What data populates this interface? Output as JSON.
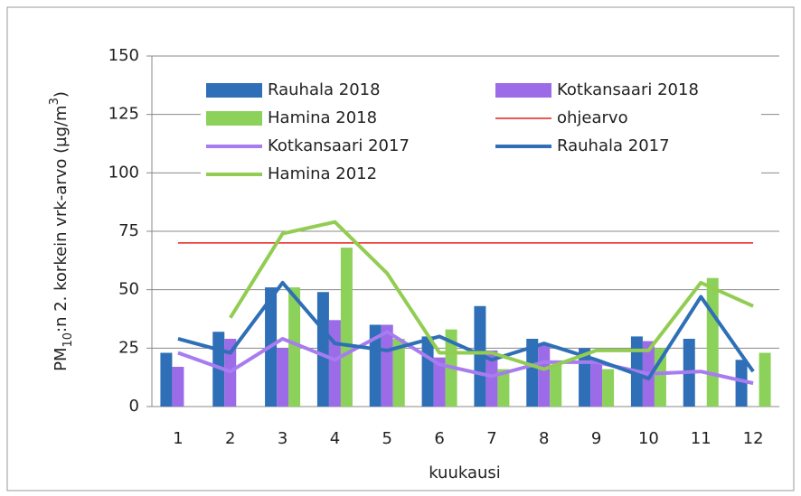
{
  "chart_data": {
    "type": "bar",
    "xlabel": "kuukausi",
    "ylabel": [
      "PM",
      "10",
      ":n 2. korkein vrk-arvo (µg/m",
      "3",
      ")"
    ],
    "ylabel_styles": [
      "normal",
      "sub",
      "normal",
      "super",
      "normal"
    ],
    "categories": [
      "1",
      "2",
      "3",
      "4",
      "5",
      "6",
      "7",
      "8",
      "9",
      "10",
      "11",
      "12"
    ],
    "ylim": [
      0,
      150
    ],
    "yticks": [
      0,
      25,
      50,
      75,
      100,
      125,
      150
    ],
    "grid": true,
    "series": [
      {
        "name": "Rauhala 2018",
        "kind": "bar",
        "color": "#2e6fb7",
        "values": [
          23,
          32,
          51,
          49,
          35,
          30,
          43,
          29,
          25,
          30,
          29,
          20
        ]
      },
      {
        "name": "Kotkansaari 2018",
        "kind": "bar",
        "color": "#9b6be8",
        "values": [
          17,
          29,
          25,
          37,
          35,
          21,
          24,
          27,
          20,
          28,
          null,
          null
        ]
      },
      {
        "name": "Hamina 2018",
        "kind": "bar",
        "color": "#8cd15a",
        "values": [
          null,
          null,
          51,
          68,
          29,
          33,
          16,
          18,
          16,
          25,
          55,
          23
        ]
      },
      {
        "name": "ohjearvo",
        "kind": "line",
        "width": 1.5,
        "color": "#e8201c",
        "values": [
          70,
          70,
          70,
          70,
          70,
          70,
          70,
          70,
          70,
          70,
          70,
          70
        ]
      },
      {
        "name": "Kotkansaari 2017",
        "kind": "line",
        "width": 4,
        "color": "#a77cf0",
        "values": [
          23,
          15,
          29,
          20,
          32,
          18,
          13,
          19,
          19,
          14,
          15,
          10
        ]
      },
      {
        "name": "Rauhala 2017",
        "kind": "line",
        "width": 4,
        "color": "#2e6fb7",
        "values": [
          29,
          23,
          53,
          27,
          24,
          30,
          20,
          27,
          20,
          12,
          47,
          15
        ]
      },
      {
        "name": "Hamina 2012",
        "kind": "line",
        "width": 4,
        "color": "#92cd52",
        "values": [
          null,
          38,
          74,
          79,
          57,
          23,
          23,
          16,
          24,
          24,
          53,
          43
        ]
      }
    ]
  }
}
